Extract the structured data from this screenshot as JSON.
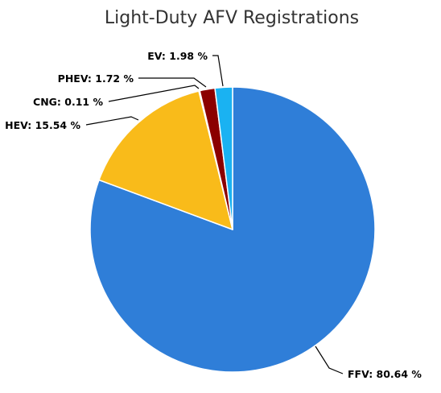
{
  "chart_data": {
    "type": "pie",
    "title": "Light-Duty AFV Registrations",
    "start_angle_deg": 0,
    "direction": "clockwise",
    "slices": [
      {
        "key": "ffv",
        "label": "FFV",
        "value": 80.64,
        "display": "FFV: 80.64 %",
        "color": "#2f7ed8"
      },
      {
        "key": "hev",
        "label": "HEV",
        "value": 15.54,
        "display": "HEV: 15.54 %",
        "color": "#f9bb1a"
      },
      {
        "key": "cng",
        "label": "CNG",
        "value": 0.11,
        "display": "CNG: 0.11 %",
        "color": "#c00000"
      },
      {
        "key": "phev",
        "label": "PHEV",
        "value": 1.72,
        "display": "PHEV: 1.72 %",
        "color": "#8b0000"
      },
      {
        "key": "ev",
        "label": "EV",
        "value": 1.98,
        "display": "EV: 1.98 %",
        "color": "#1ab2f2"
      }
    ]
  }
}
